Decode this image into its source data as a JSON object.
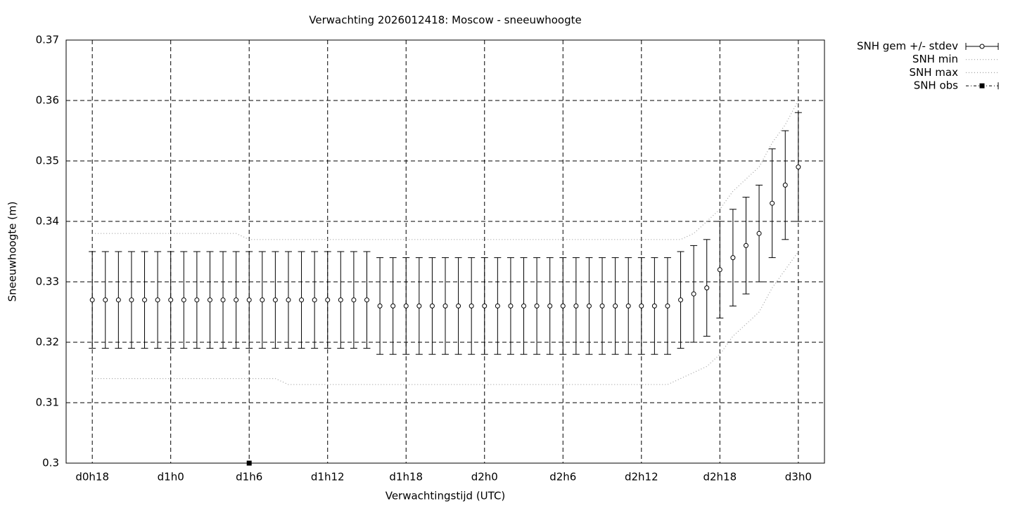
{
  "chart_data": {
    "type": "line",
    "title": "Verwachting 2026012418: Moscow - sneeuwhoogte",
    "xlabel": "Verwachtingstijd (UTC)",
    "ylabel": "Sneeuwhoogte (m)",
    "xlim": [
      16,
      74
    ],
    "xticks": [
      {
        "value": 18,
        "label": "d0h18"
      },
      {
        "value": 24,
        "label": "d1h0"
      },
      {
        "value": 30,
        "label": "d1h6"
      },
      {
        "value": 36,
        "label": "d1h12"
      },
      {
        "value": 42,
        "label": "d1h18"
      },
      {
        "value": 48,
        "label": "d2h0"
      },
      {
        "value": 54,
        "label": "d2h6"
      },
      {
        "value": 60,
        "label": "d2h12"
      },
      {
        "value": 66,
        "label": "d2h18"
      },
      {
        "value": 72,
        "label": "d3h0"
      }
    ],
    "ylim": [
      0.3,
      0.37
    ],
    "yticks": [
      0.3,
      0.31,
      0.32,
      0.33,
      0.34,
      0.35,
      0.36,
      0.37
    ],
    "grid": true,
    "legend": "outside-top-right",
    "x": [
      18,
      19,
      20,
      21,
      22,
      23,
      24,
      25,
      26,
      27,
      28,
      29,
      30,
      31,
      32,
      33,
      34,
      35,
      36,
      37,
      38,
      39,
      40,
      41,
      42,
      43,
      44,
      45,
      46,
      47,
      48,
      49,
      50,
      51,
      52,
      53,
      54,
      55,
      56,
      57,
      58,
      59,
      60,
      61,
      62,
      63,
      64,
      65,
      66,
      67,
      68,
      69,
      70,
      71,
      72
    ],
    "series": [
      {
        "name": "SNH gem +/- stdev",
        "color": "#000000",
        "style": "errorbars",
        "values": [
          0.327,
          0.327,
          0.327,
          0.327,
          0.327,
          0.327,
          0.327,
          0.327,
          0.327,
          0.327,
          0.327,
          0.327,
          0.327,
          0.327,
          0.327,
          0.327,
          0.327,
          0.327,
          0.327,
          0.327,
          0.327,
          0.327,
          0.326,
          0.326,
          0.326,
          0.326,
          0.326,
          0.326,
          0.326,
          0.326,
          0.326,
          0.326,
          0.326,
          0.326,
          0.326,
          0.326,
          0.326,
          0.326,
          0.326,
          0.326,
          0.326,
          0.326,
          0.326,
          0.326,
          0.326,
          0.327,
          0.328,
          0.329,
          0.332,
          0.334,
          0.336,
          0.338,
          0.343,
          0.346,
          0.349
        ],
        "errors": [
          0.008,
          0.008,
          0.008,
          0.008,
          0.008,
          0.008,
          0.008,
          0.008,
          0.008,
          0.008,
          0.008,
          0.008,
          0.008,
          0.008,
          0.008,
          0.008,
          0.008,
          0.008,
          0.008,
          0.008,
          0.008,
          0.008,
          0.008,
          0.008,
          0.008,
          0.008,
          0.008,
          0.008,
          0.008,
          0.008,
          0.008,
          0.008,
          0.008,
          0.008,
          0.008,
          0.008,
          0.008,
          0.008,
          0.008,
          0.008,
          0.008,
          0.008,
          0.008,
          0.008,
          0.008,
          0.008,
          0.008,
          0.008,
          0.008,
          0.008,
          0.008,
          0.008,
          0.009,
          0.009,
          0.009
        ]
      },
      {
        "name": "SNH min",
        "color": "#a0a0a0",
        "style": "dotted",
        "values": [
          0.314,
          0.314,
          0.314,
          0.314,
          0.314,
          0.314,
          0.314,
          0.314,
          0.314,
          0.314,
          0.314,
          0.314,
          0.314,
          0.314,
          0.314,
          0.313,
          0.313,
          0.313,
          0.313,
          0.313,
          0.313,
          0.313,
          0.313,
          0.313,
          0.313,
          0.313,
          0.313,
          0.313,
          0.313,
          0.313,
          0.313,
          0.313,
          0.313,
          0.313,
          0.313,
          0.313,
          0.313,
          0.313,
          0.313,
          0.313,
          0.313,
          0.313,
          0.313,
          0.313,
          0.313,
          0.314,
          0.315,
          0.316,
          0.318,
          0.321,
          0.323,
          0.325,
          0.329,
          0.332,
          0.335
        ]
      },
      {
        "name": "SNH max",
        "color": "#a0a0a0",
        "style": "dotted",
        "values": [
          0.338,
          0.338,
          0.338,
          0.338,
          0.338,
          0.338,
          0.338,
          0.338,
          0.338,
          0.338,
          0.338,
          0.338,
          0.337,
          0.337,
          0.337,
          0.337,
          0.337,
          0.337,
          0.337,
          0.337,
          0.337,
          0.337,
          0.337,
          0.337,
          0.337,
          0.337,
          0.337,
          0.337,
          0.337,
          0.337,
          0.337,
          0.337,
          0.337,
          0.337,
          0.337,
          0.337,
          0.337,
          0.337,
          0.337,
          0.337,
          0.337,
          0.337,
          0.337,
          0.337,
          0.337,
          0.337,
          0.338,
          0.34,
          0.342,
          0.345,
          0.347,
          0.349,
          0.353,
          0.356,
          0.36
        ]
      },
      {
        "name": "SNH obs",
        "color": "#000000",
        "style": "obs",
        "x": [
          30
        ],
        "values": [
          0.3
        ]
      }
    ]
  }
}
